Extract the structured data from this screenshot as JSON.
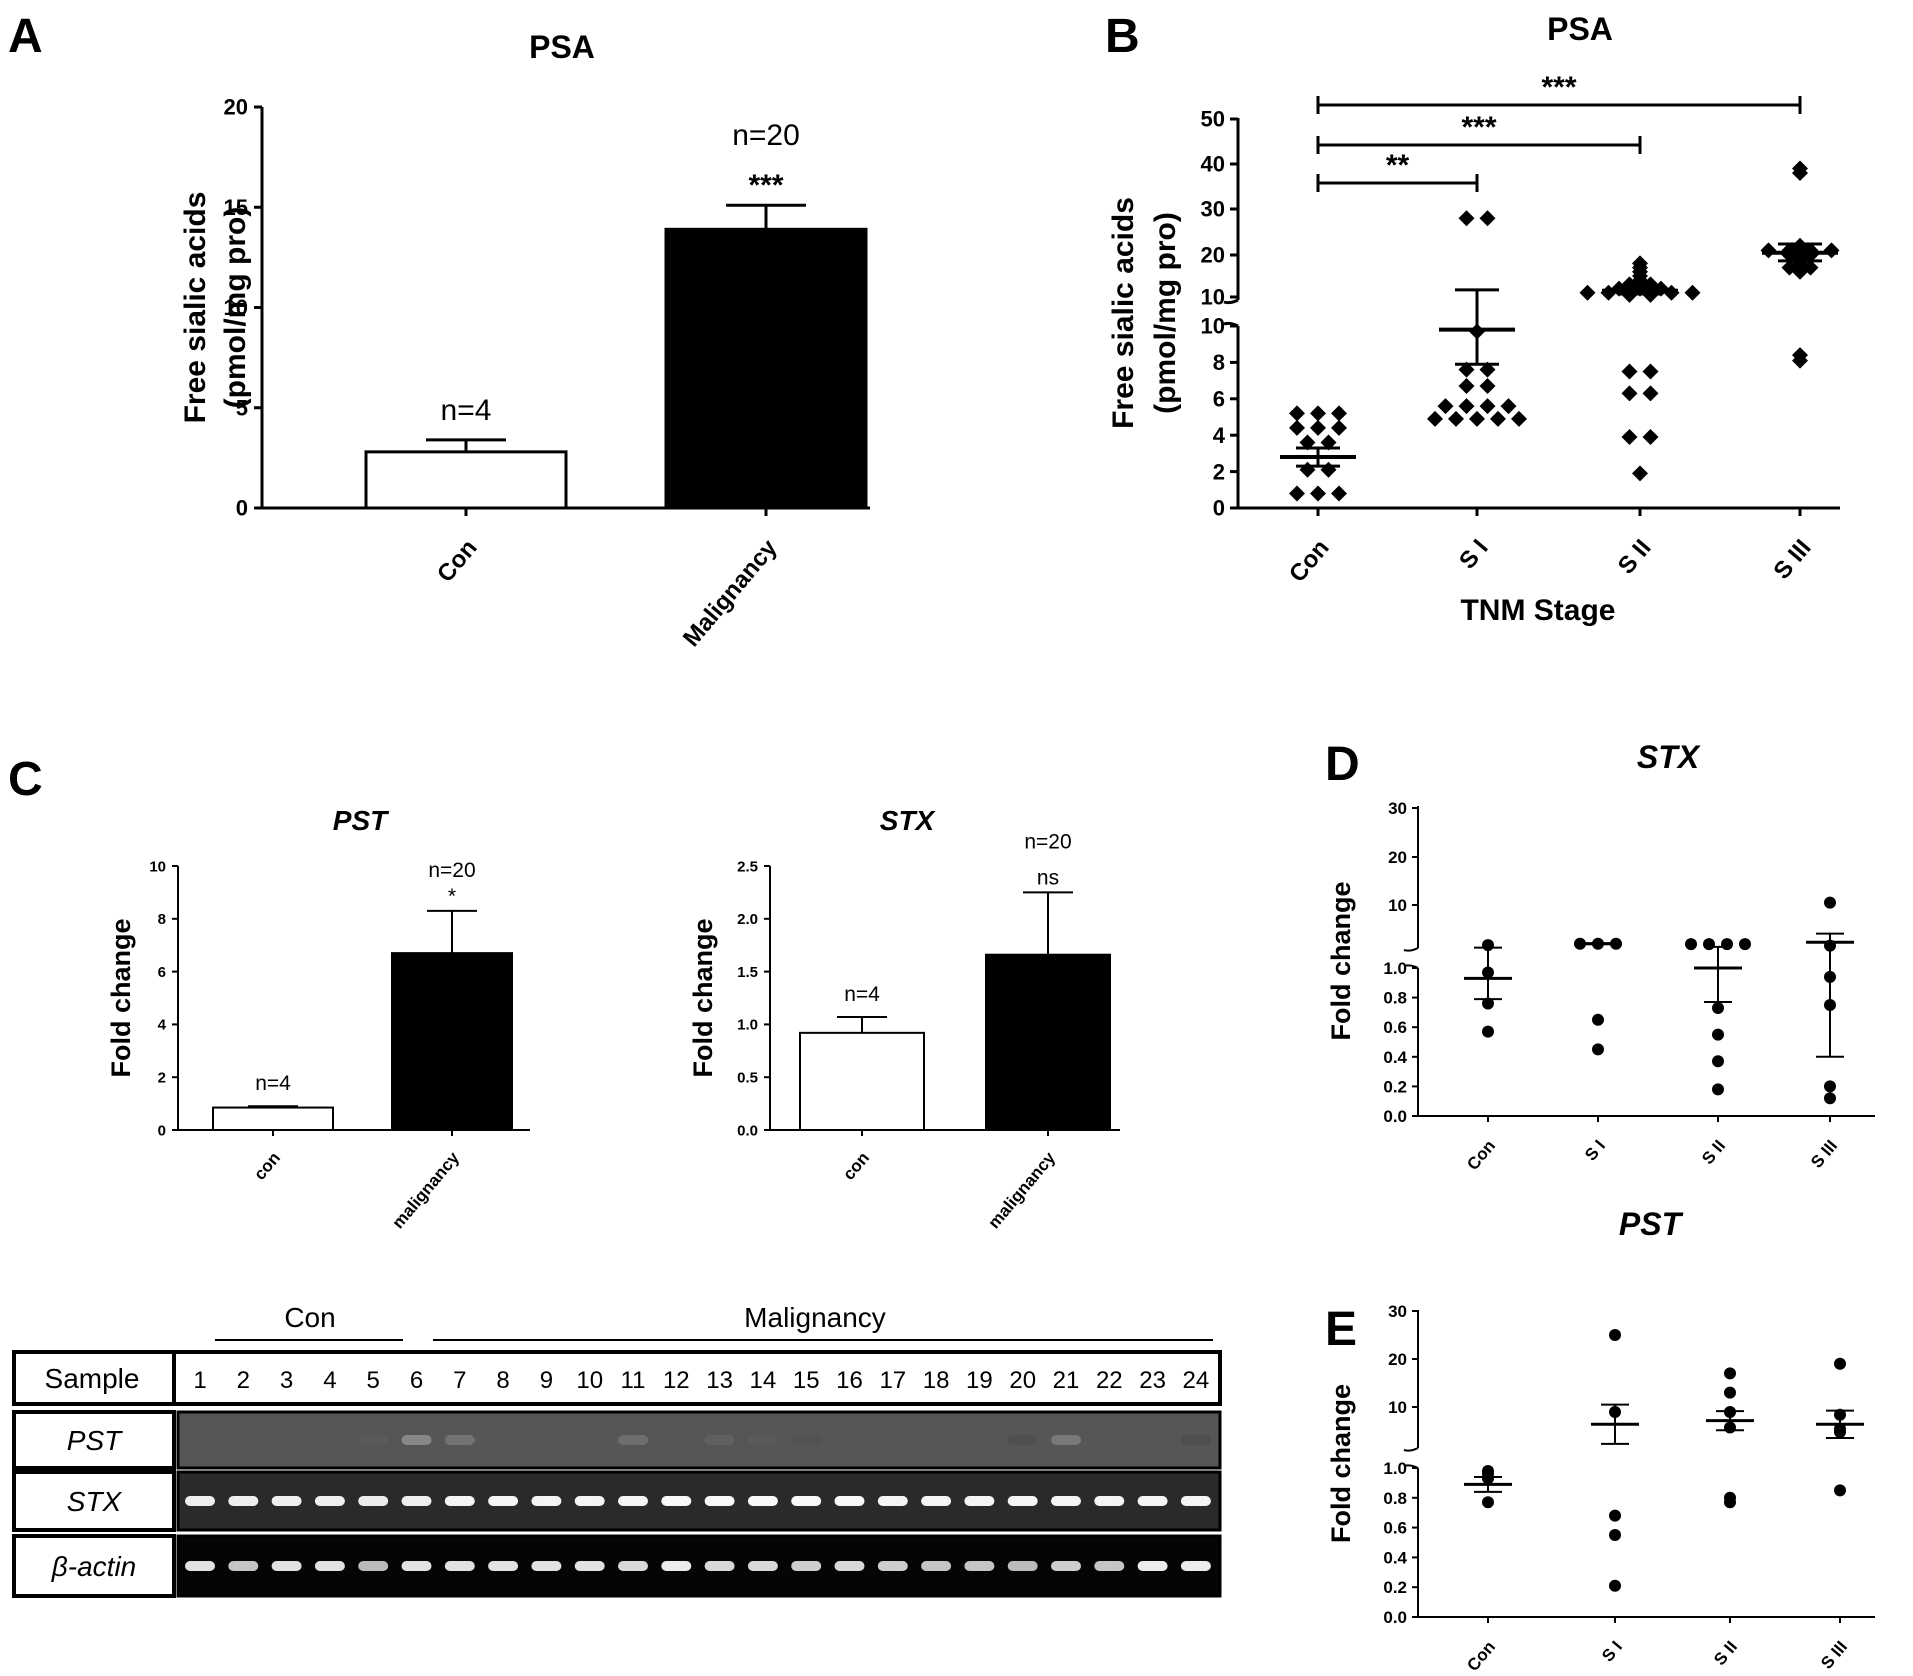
{
  "panels": {
    "A": {
      "letter": "A"
    },
    "B": {
      "letter": "B"
    },
    "C": {
      "letter": "C"
    },
    "D": {
      "letter": "D"
    },
    "E": {
      "letter": "E"
    }
  },
  "chart_data": [
    {
      "id": "A",
      "type": "bar",
      "title": "PSA",
      "ylabel": [
        "Free sialic acids",
        "(pmol/mg pro)"
      ],
      "categories": [
        "Con",
        "Malignancy"
      ],
      "values": [
        2.8,
        13.9
      ],
      "errors": [
        0.6,
        1.2
      ],
      "fills": [
        "#ffffff",
        "#000000"
      ],
      "n_labels": [
        "n=4",
        "n=20"
      ],
      "sig_labels": [
        "",
        "***"
      ],
      "ylim": [
        0,
        20
      ],
      "yticks": [
        "0",
        "5",
        "10",
        "15",
        "20"
      ]
    },
    {
      "id": "B",
      "type": "scatter",
      "title": "PSA",
      "ylabel": [
        "Free sialic acids",
        "(pmol/mg pro)"
      ],
      "xlabel": "TNM Stage",
      "categories": [
        "Con",
        "S I",
        "S II",
        "S III"
      ],
      "yticks_lower": [
        "0",
        "2",
        "4",
        "6",
        "8",
        "10"
      ],
      "yticks_upper": [
        "10",
        "20",
        "30",
        "40",
        "50"
      ],
      "ylim_lower": [
        0,
        10
      ],
      "ylim_upper": [
        10,
        50
      ],
      "points": [
        [
          5.2,
          5.2,
          5.2,
          4.4,
          4.4,
          4.4,
          3.6,
          3.6,
          2.1,
          2.1,
          0.8,
          0.8,
          0.8
        ],
        [
          28,
          28,
          9.7,
          7.6,
          7.6,
          6.7,
          6.7,
          5.6,
          5.6,
          5.6,
          5.6,
          4.9,
          4.9,
          4.9,
          4.9,
          4.9
        ],
        [
          18,
          17,
          16,
          15,
          14,
          13,
          13,
          12,
          12,
          12,
          11,
          11,
          11,
          11,
          11,
          11,
          10.5,
          10.5,
          7.5,
          7.5,
          6.3,
          6.3,
          3.9,
          3.9,
          1.9
        ],
        [
          39,
          38,
          22,
          21,
          21,
          21,
          21,
          20,
          20,
          19,
          18,
          17,
          17,
          16,
          8.4,
          8.1
        ]
      ],
      "means": [
        2.8,
        9.8,
        11.5,
        20.5
      ],
      "sem": [
        0.5,
        1.9,
        0.8,
        1.9
      ],
      "comparisons": [
        {
          "from": "Con",
          "to": "S I",
          "label": "**"
        },
        {
          "from": "Con",
          "to": "S II",
          "label": "***"
        },
        {
          "from": "Con",
          "to": "S III",
          "label": "***"
        }
      ]
    },
    {
      "id": "C1",
      "type": "bar",
      "title": "PST",
      "ylabel": "Fold change",
      "categories": [
        "con",
        "malignancy"
      ],
      "values": [
        0.85,
        6.7
      ],
      "errors": [
        0.05,
        1.6
      ],
      "fills": [
        "#ffffff",
        "#000000"
      ],
      "n_labels": [
        "n=4",
        "n=20"
      ],
      "sig_labels": [
        "",
        "*"
      ],
      "ylim": [
        0,
        10
      ],
      "yticks": [
        "0",
        "2",
        "4",
        "6",
        "8",
        "10"
      ]
    },
    {
      "id": "C2",
      "type": "bar",
      "title": "STX",
      "ylabel": "Fold change",
      "categories": [
        "con",
        "malignancy"
      ],
      "values": [
        0.92,
        1.66
      ],
      "errors": [
        0.15,
        0.59
      ],
      "fills": [
        "#ffffff",
        "#000000"
      ],
      "n_labels": [
        "n=4",
        "n=20"
      ],
      "sig_labels": [
        "",
        "ns"
      ],
      "ylim": [
        0,
        2.5
      ],
      "yticks": [
        "0.0",
        "0.5",
        "1.0",
        "1.5",
        "2.0",
        "2.5"
      ]
    },
    {
      "id": "D",
      "type": "scatter",
      "title": "STX",
      "ylabel": "Fold change",
      "categories": [
        "Con",
        "S I",
        "S II",
        "S III"
      ],
      "yticks_lower": [
        "0.0",
        "0.2",
        "0.4",
        "0.6",
        "0.8",
        "1.0"
      ],
      "yticks_upper": [
        "10",
        "20",
        "30"
      ],
      "ylim_lower": [
        0,
        1.0
      ],
      "ylim_upper": [
        1.0,
        30
      ],
      "points": [
        [
          1.6,
          0.97,
          0.76,
          0.57
        ],
        [
          1.9,
          1.9,
          1.9,
          0.65,
          0.45
        ],
        [
          1.8,
          1.8,
          1.8,
          1.8,
          0.73,
          0.55,
          0.37,
          0.18
        ],
        [
          10.5,
          1.5,
          0.94,
          0.75,
          0.2,
          0.12
        ]
      ],
      "means": [
        0.93,
        1.9,
        1.0,
        2.2
      ],
      "sem": [
        0.14,
        0.1,
        0.23,
        1.8
      ]
    },
    {
      "id": "E",
      "type": "scatter",
      "title": "PST",
      "ylabel": "Fold change",
      "categories": [
        "Con",
        "S I",
        "S II",
        "S III"
      ],
      "yticks_lower": [
        "0.0",
        "0.2",
        "0.4",
        "0.6",
        "0.8",
        "1.0"
      ],
      "yticks_upper": [
        "10",
        "20",
        "30"
      ],
      "ylim_lower": [
        0,
        1.0
      ],
      "ylim_upper": [
        1.0,
        30
      ],
      "points": [
        [
          0.98,
          0.96,
          0.93,
          0.77
        ],
        [
          25,
          8.9,
          0.68,
          0.55,
          0.21
        ],
        [
          17,
          13,
          8.9,
          5.5,
          0.8,
          0.77
        ],
        [
          19,
          8.3,
          5.2,
          4.5,
          0.85
        ]
      ],
      "means": [
        0.89,
        6.2,
        7.0,
        6.2
      ],
      "sem": [
        0.05,
        4.3,
        2.1,
        3.0
      ]
    }
  ],
  "gel": {
    "group_labels": [
      "Con",
      "Malignancy"
    ],
    "header_label": "Sample",
    "lanes": [
      "1",
      "2",
      "3",
      "4",
      "5",
      "6",
      "7",
      "8",
      "9",
      "10",
      "11",
      "12",
      "13",
      "14",
      "15",
      "16",
      "17",
      "18",
      "19",
      "20",
      "21",
      "22",
      "23",
      "24"
    ],
    "rows": [
      {
        "label": "PST",
        "bg": "#565656",
        "intensity": [
          0.0,
          0.0,
          0.0,
          0.0,
          0.18,
          0.45,
          0.35,
          0.0,
          0.0,
          0.0,
          0.32,
          0.0,
          0.22,
          0.18,
          0.08,
          0.0,
          0.0,
          0.0,
          0.0,
          0.05,
          0.38,
          0.0,
          0.0,
          0.05
        ]
      },
      {
        "label": "STX",
        "bg": "#2a2a2a",
        "intensity": [
          0.92,
          0.92,
          0.92,
          0.92,
          0.9,
          0.92,
          0.95,
          0.95,
          0.95,
          0.95,
          0.95,
          0.97,
          0.97,
          0.97,
          0.97,
          0.97,
          0.95,
          0.95,
          0.95,
          0.95,
          0.95,
          0.95,
          0.95,
          0.95
        ]
      },
      {
        "label": "β-actin",
        "bg": "#050505",
        "intensity": [
          0.85,
          0.7,
          0.85,
          0.85,
          0.65,
          0.85,
          0.85,
          0.85,
          0.85,
          0.85,
          0.8,
          0.9,
          0.8,
          0.8,
          0.75,
          0.8,
          0.75,
          0.7,
          0.7,
          0.65,
          0.75,
          0.7,
          0.9,
          0.9
        ]
      }
    ]
  }
}
